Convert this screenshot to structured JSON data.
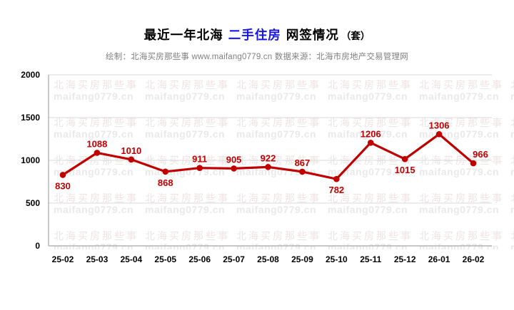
{
  "title": {
    "part1": "最近一年北海 ",
    "highlight": "二手住房",
    "part2": " 网签情况",
    "unit": "（套）",
    "highlight_color": "#1616e6"
  },
  "subtitle": "绘制：北海买房那些事 www.maifang0779.cn 数据来源：北海市房地产交易管理网",
  "watermark": {
    "line1": "北海买房那些事",
    "line2": "maifang0779.cn",
    "color1": "#eee3e3",
    "color2": "#e9e9e9",
    "rows": 5,
    "cols": 6
  },
  "chart_data": {
    "type": "line",
    "title": "最近一年北海 二手住房 网签情况（套）",
    "xlabel": "",
    "ylabel": "",
    "categories": [
      "25-02",
      "25-03",
      "25-04",
      "25-05",
      "25-06",
      "25-07",
      "25-08",
      "25-09",
      "25-10",
      "25-11",
      "25-12",
      "26-01",
      "26-02"
    ],
    "values": [
      830,
      1088,
      1010,
      868,
      911,
      905,
      922,
      867,
      782,
      1206,
      1015,
      1306,
      966
    ],
    "label_positions": [
      "below",
      "above",
      "above",
      "below",
      "above",
      "above",
      "above",
      "above",
      "below",
      "above",
      "below",
      "above",
      "above"
    ],
    "label_dx": [
      0,
      0,
      0,
      0,
      0,
      0,
      0,
      0,
      0,
      0,
      0,
      0,
      10
    ],
    "series_color": "#c00000",
    "ylim": [
      0,
      2000
    ],
    "yticks": [
      0,
      500,
      1000,
      1500,
      2000
    ],
    "grid": true,
    "gridline_color": "#d9d9d9",
    "axis_color": "#a6a6a6",
    "legend": "none"
  }
}
